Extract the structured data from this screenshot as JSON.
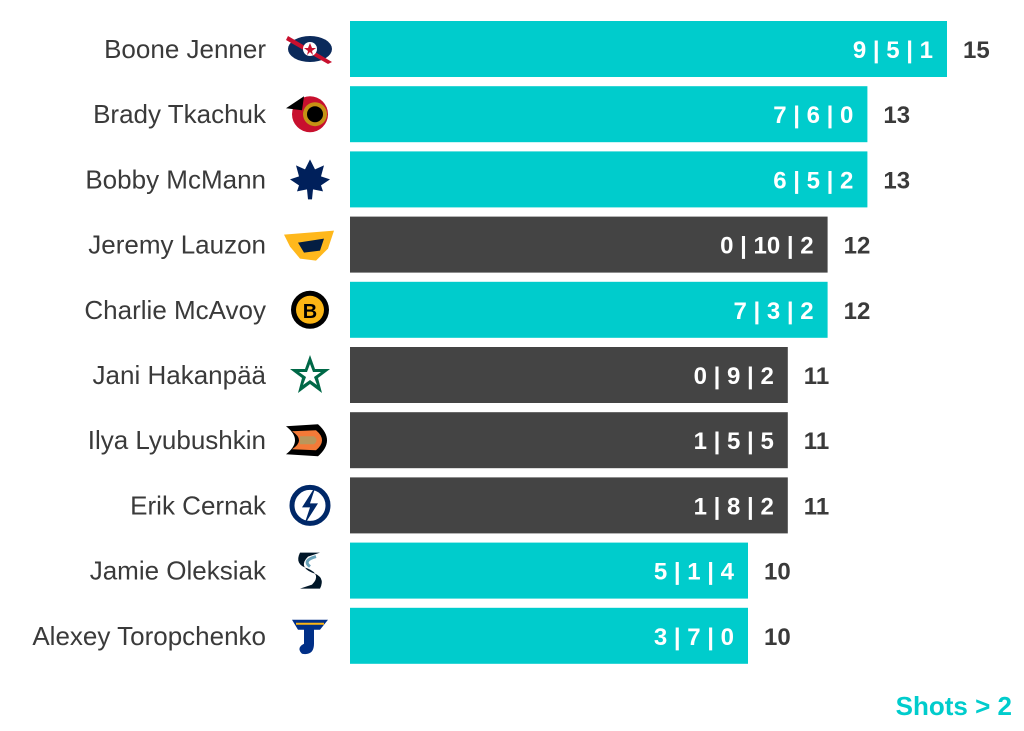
{
  "chart_data": {
    "type": "bar",
    "orientation": "horizontal",
    "categories": [
      "Boone Jenner",
      "Brady Tkachuk",
      "Bobby McMann",
      "Jeremy Lauzon",
      "Charlie McAvoy",
      "Jani Hakanpää",
      "Ilya Lyubushkin",
      "Erik Cernak",
      "Jamie Oleksiak",
      "Alexey Toropchenko"
    ],
    "values": [
      15,
      13,
      13,
      12,
      12,
      11,
      11,
      11,
      10,
      10
    ],
    "bar_labels": [
      "9 | 5 | 1",
      "7 | 6 | 0",
      "6 | 5 | 2",
      "0 | 10 | 2",
      "7 | 3 | 2",
      "0 | 9 | 2",
      "1 | 5 | 5",
      "1 | 8 | 2",
      "5 | 1 | 4",
      "3 | 7 | 0"
    ],
    "highlight": [
      true,
      true,
      true,
      false,
      true,
      false,
      false,
      false,
      true,
      true
    ],
    "teams": [
      "blue-jackets",
      "senators",
      "maple-leafs",
      "predators",
      "bruins",
      "stars",
      "ducks",
      "lightning",
      "kraken",
      "blues"
    ],
    "xlim": [
      0,
      15
    ],
    "grid": false,
    "legend_note": "Shots > 2"
  },
  "colors": {
    "highlight": "#00cccc",
    "default": "#444444",
    "note": "#00cccc",
    "text": "#3a3a3a"
  }
}
